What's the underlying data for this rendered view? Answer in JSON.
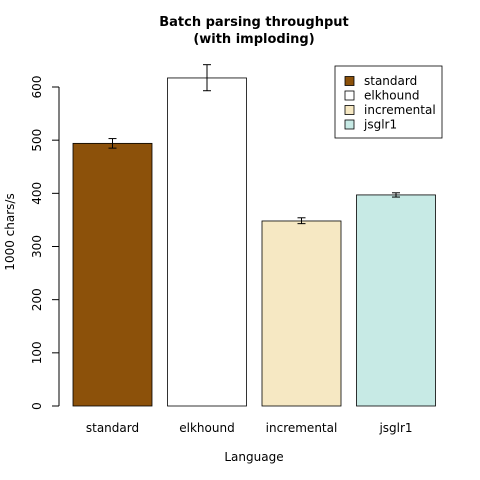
{
  "chart_data": {
    "type": "bar",
    "title_lines": [
      "Batch parsing throughput",
      "(with imploding)"
    ],
    "xlabel": "Language",
    "ylabel": "1000 chars/s",
    "ylim": [
      0,
      600
    ],
    "yticks": [
      0,
      100,
      200,
      300,
      400,
      500,
      600
    ],
    "categories": [
      "standard",
      "elkhound",
      "incremental",
      "jsglr1"
    ],
    "values": [
      494,
      617,
      348,
      397
    ],
    "error_low": [
      485,
      593,
      343,
      393
    ],
    "error_high": [
      503,
      642,
      354,
      401
    ],
    "colors": [
      "#8c510a",
      "#ffffff",
      "#f6e8c3",
      "#c7eae5"
    ],
    "legend": {
      "position": "top-right",
      "entries": [
        "standard",
        "elkhound",
        "incremental",
        "jsglr1"
      ]
    },
    "grid": false
  }
}
